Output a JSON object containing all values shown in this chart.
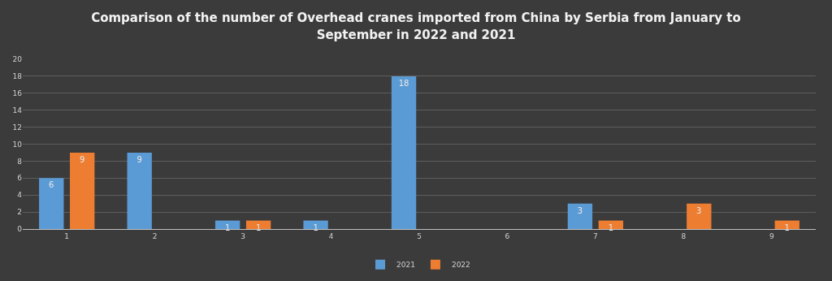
{
  "chart_data": {
    "type": "bar",
    "title": "Comparison of the number of Overhead cranes imported from China by Serbia from January to September in 2022 and 2021",
    "categories": [
      "1",
      "2",
      "3",
      "4",
      "5",
      "6",
      "7",
      "8",
      "9"
    ],
    "series": [
      {
        "name": "2021",
        "color": "#5b9bd5",
        "values": [
          6,
          9,
          1,
          1,
          18,
          null,
          3,
          null,
          null
        ]
      },
      {
        "name": "2022",
        "color": "#ed7d31",
        "values": [
          9,
          null,
          1,
          null,
          null,
          null,
          1,
          3,
          1
        ]
      }
    ],
    "ylim": [
      0,
      20
    ],
    "yticks": [
      0,
      2,
      4,
      6,
      8,
      10,
      12,
      14,
      16,
      18,
      20
    ],
    "grid": "y",
    "legend": "bottom",
    "data_labels": true
  }
}
